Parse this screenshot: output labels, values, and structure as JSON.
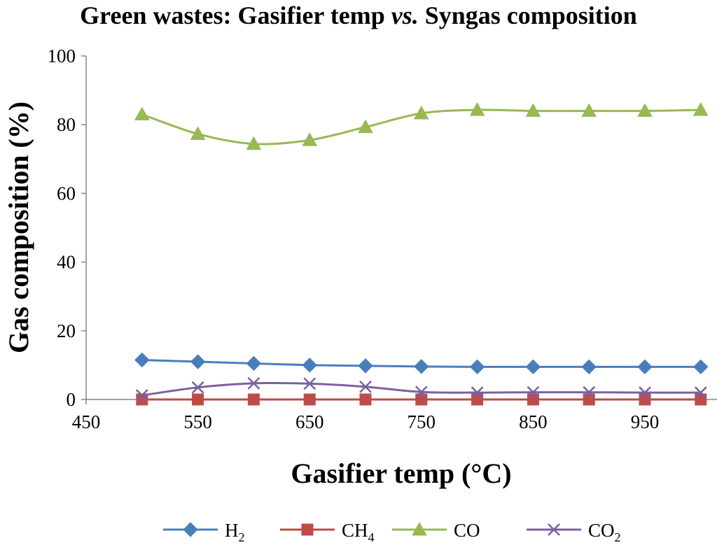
{
  "chart_data": {
    "type": "line",
    "title": {
      "part1": "Green wastes: Gasifier temp ",
      "part2": "vs.",
      "part3": " Syngas composition"
    },
    "xlabel": "Gasifier temp (°C)",
    "ylabel": "Gas composition (%)",
    "xlim": [
      450,
      1000
    ],
    "ylim": [
      0,
      100
    ],
    "xticks": [
      450,
      550,
      650,
      750,
      850,
      950
    ],
    "yticks": [
      0,
      20,
      40,
      60,
      80,
      100
    ],
    "grid": false,
    "legend_position": "bottom",
    "x": [
      500,
      550,
      600,
      650,
      700,
      750,
      800,
      850,
      900,
      950,
      1000
    ],
    "series": [
      {
        "name": "H",
        "subscript": "2",
        "color": "#4a7ebb",
        "marker": "diamond",
        "values": [
          11.5,
          11.0,
          10.5,
          10.0,
          9.8,
          9.6,
          9.5,
          9.5,
          9.5,
          9.5,
          9.5
        ]
      },
      {
        "name": "CH",
        "subscript": "4",
        "color": "#be4b48",
        "marker": "square",
        "values": [
          0,
          0,
          0,
          0,
          0,
          0,
          0,
          0,
          0,
          0,
          0
        ]
      },
      {
        "name": "CO",
        "subscript": "",
        "color": "#98b954",
        "marker": "triangle",
        "values": [
          83.0,
          77.3,
          74.4,
          75.5,
          79.3,
          83.3,
          84.3,
          84.0,
          84.0,
          84.0,
          84.3
        ]
      },
      {
        "name": "CO",
        "subscript": "2",
        "color": "#7d60a0",
        "marker": "x",
        "values": [
          1.2,
          3.5,
          4.7,
          4.6,
          3.7,
          2.2,
          2.0,
          2.1,
          2.1,
          2.0,
          2.0
        ]
      }
    ]
  }
}
